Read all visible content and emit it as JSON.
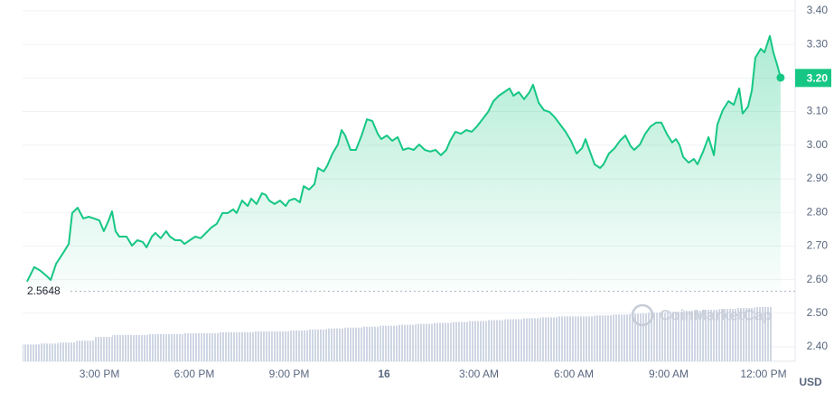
{
  "chart_data": {
    "type": "line",
    "color": "#16c784",
    "x": [
      12.71,
      12.94,
      13.14,
      13.34,
      13.46,
      13.63,
      13.86,
      14.03,
      14.14,
      14.31,
      14.49,
      14.66,
      14.83,
      15.0,
      15.14,
      15.29,
      15.4,
      15.51,
      15.63,
      15.86,
      16.03,
      16.2,
      16.37,
      16.49,
      16.66,
      16.77,
      16.94,
      17.11,
      17.23,
      17.4,
      17.57,
      17.69,
      17.86,
      18.03,
      18.2,
      18.37,
      18.54,
      18.71,
      18.89,
      19.06,
      19.23,
      19.34,
      19.51,
      19.69,
      19.8,
      19.97,
      20.14,
      20.26,
      20.37,
      20.54,
      20.71,
      20.89,
      21.0,
      21.17,
      21.34,
      21.46,
      21.63,
      21.8,
      21.91,
      22.09,
      22.2,
      22.37,
      22.54,
      22.66,
      22.77,
      22.94,
      23.11,
      23.29,
      23.46,
      23.63,
      23.8,
      23.91,
      24.09,
      24.26,
      24.43,
      24.6,
      24.77,
      24.94,
      25.11,
      25.29,
      25.46,
      25.63,
      25.8,
      25.97,
      26.09,
      26.26,
      26.43,
      26.6,
      26.77,
      26.94,
      27.11,
      27.29,
      27.46,
      27.63,
      27.8,
      27.97,
      28.09,
      28.26,
      28.43,
      28.6,
      28.71,
      28.89,
      29.06,
      29.23,
      29.4,
      29.57,
      29.74,
      29.91,
      30.09,
      30.26,
      30.37,
      30.49,
      30.66,
      30.83,
      30.94,
      31.11,
      31.29,
      31.46,
      31.63,
      31.8,
      31.91,
      32.09,
      32.26,
      32.43,
      32.6,
      32.77,
      32.94,
      33.11,
      33.23,
      33.34,
      33.46,
      33.63,
      33.8,
      33.91,
      34.09,
      34.26,
      34.43,
      34.54,
      34.71,
      34.89,
      35.06,
      35.23,
      35.34,
      35.51,
      35.63,
      35.74,
      35.91,
      36.03,
      36.2,
      36.31,
      36.43,
      36.54
    ],
    "values": [
      2.594,
      2.637,
      2.626,
      2.61,
      2.599,
      2.647,
      2.68,
      2.706,
      2.798,
      2.814,
      2.782,
      2.787,
      2.782,
      2.776,
      2.744,
      2.776,
      2.803,
      2.744,
      2.728,
      2.728,
      2.701,
      2.717,
      2.712,
      2.696,
      2.728,
      2.739,
      2.723,
      2.744,
      2.728,
      2.717,
      2.717,
      2.706,
      2.717,
      2.728,
      2.723,
      2.739,
      2.755,
      2.766,
      2.798,
      2.798,
      2.809,
      2.798,
      2.835,
      2.819,
      2.841,
      2.825,
      2.857,
      2.852,
      2.835,
      2.825,
      2.835,
      2.819,
      2.835,
      2.841,
      2.83,
      2.878,
      2.868,
      2.884,
      2.932,
      2.922,
      2.938,
      2.975,
      3.002,
      3.045,
      3.029,
      2.986,
      2.986,
      3.029,
      3.077,
      3.072,
      3.034,
      3.018,
      3.029,
      3.013,
      3.024,
      2.986,
      2.991,
      2.986,
      3.002,
      2.986,
      2.981,
      2.986,
      2.97,
      2.986,
      3.013,
      3.04,
      3.034,
      3.045,
      3.04,
      3.056,
      3.077,
      3.099,
      3.131,
      3.147,
      3.158,
      3.169,
      3.147,
      3.158,
      3.137,
      3.158,
      3.18,
      3.126,
      3.104,
      3.099,
      3.083,
      3.061,
      3.04,
      3.013,
      2.975,
      2.991,
      3.018,
      2.986,
      2.943,
      2.932,
      2.943,
      2.975,
      2.991,
      3.013,
      3.029,
      2.997,
      2.986,
      3.002,
      3.034,
      3.056,
      3.067,
      3.067,
      3.034,
      3.008,
      3.018,
      3.002,
      2.965,
      2.948,
      2.959,
      2.943,
      2.981,
      3.024,
      2.97,
      3.061,
      3.104,
      3.131,
      3.12,
      3.169,
      3.094,
      3.115,
      3.163,
      3.26,
      3.287,
      3.276,
      3.325,
      3.276,
      3.239,
      3.201
    ],
    "xlim": [
      12.57,
      37.0
    ],
    "ylim": [
      2.357,
      3.432
    ],
    "xticks": [
      {
        "value": 15,
        "label": "3:00 PM"
      },
      {
        "value": 18,
        "label": "6:00 PM"
      },
      {
        "value": 21,
        "label": "9:00 PM"
      },
      {
        "value": 24,
        "label": "16"
      },
      {
        "value": 27,
        "label": "3:00 AM"
      },
      {
        "value": 30,
        "label": "6:00 AM"
      },
      {
        "value": 33,
        "label": "9:00 AM"
      },
      {
        "value": 36,
        "label": "12:00 PM"
      }
    ],
    "yticks": [
      {
        "value": 2.4,
        "label": "2.40"
      },
      {
        "value": 2.5,
        "label": "2.50"
      },
      {
        "value": 2.6,
        "label": "2.60"
      },
      {
        "value": 2.7,
        "label": "2.70"
      },
      {
        "value": 2.8,
        "label": "2.80"
      },
      {
        "value": 2.9,
        "label": "2.90"
      },
      {
        "value": 3.0,
        "label": "3.00"
      },
      {
        "value": 3.1,
        "label": "3.10"
      },
      {
        "value": 3.2,
        "label": "3.20"
      },
      {
        "value": 3.3,
        "label": "3.30"
      },
      {
        "value": 3.4,
        "label": "3.40"
      }
    ],
    "grid": true,
    "open_price": 2.5648,
    "current_price": {
      "value": 3.2,
      "label": "3.20"
    },
    "currency": "USD",
    "watermark": "CoinMarketCap",
    "volume": {
      "color": "#cfd6e4",
      "values": [
        18,
        19,
        20,
        22,
        26,
        28,
        28,
        29,
        29,
        30,
        30,
        31,
        31,
        32,
        32,
        33,
        34,
        35,
        36,
        37,
        38,
        39,
        40,
        41,
        42,
        43,
        44,
        45,
        46,
        47,
        48,
        48,
        49,
        50,
        51,
        52,
        53,
        54,
        55,
        56,
        57,
        58
      ]
    }
  }
}
